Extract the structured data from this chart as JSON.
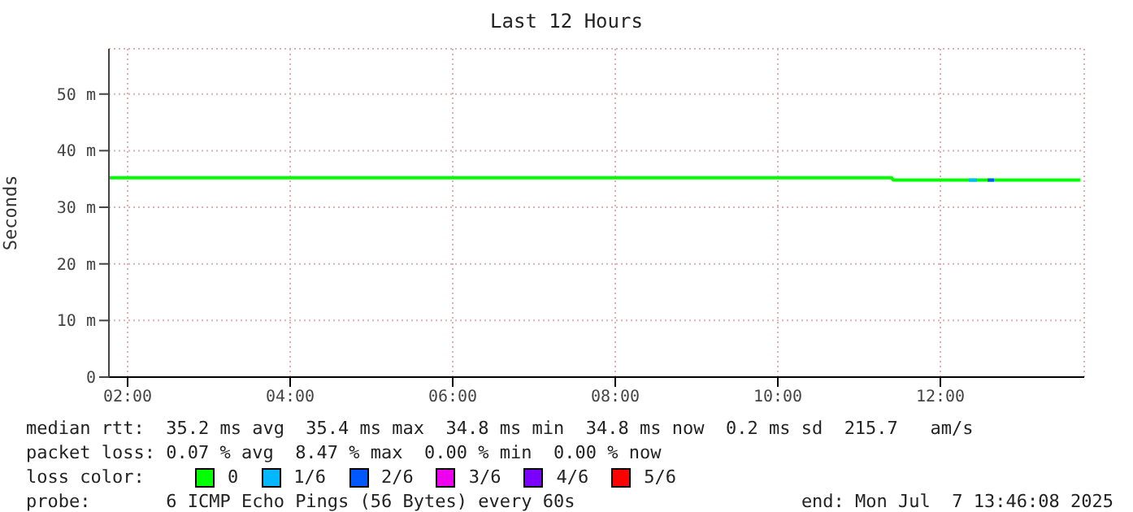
{
  "chart_data": {
    "type": "line",
    "title": "Last 12 Hours",
    "ylabel": "Seconds",
    "xlim": [
      1.77,
      13.77
    ],
    "xticks": [
      {
        "value": 2,
        "label": "02:00"
      },
      {
        "value": 4,
        "label": "04:00"
      },
      {
        "value": 6,
        "label": "06:00"
      },
      {
        "value": 8,
        "label": "08:00"
      },
      {
        "value": 10,
        "label": "10:00"
      },
      {
        "value": 12,
        "label": "12:00"
      }
    ],
    "ylim": [
      0,
      58
    ],
    "yticks": [
      0,
      {
        "value": 10,
        "label": "10 m"
      },
      {
        "value": 20,
        "label": "20 m"
      },
      {
        "value": 30,
        "label": "30 m"
      },
      {
        "value": 40,
        "label": "40 m"
      },
      {
        "value": 50,
        "label": "50 m"
      }
    ],
    "grid": true,
    "legend": "bottom",
    "legend_title": "loss color:",
    "marker": "none",
    "line_style": "solid",
    "series": [
      {
        "name": "0",
        "color": "#00ff00",
        "x": [
          1.78,
          11.4,
          11.42,
          13.72
        ],
        "values": [
          35.2,
          35.2,
          34.8,
          34.8
        ]
      },
      {
        "name": "1/6",
        "color": "#00b8ff",
        "x": [
          12.35,
          12.45
        ],
        "values": [
          34.8,
          34.8
        ]
      },
      {
        "name": "2/6",
        "color": "#0059ff",
        "x": [
          12.58,
          12.66
        ],
        "values": [
          34.8,
          34.8
        ]
      },
      {
        "name": "3/6",
        "color": "#ee00ee"
      },
      {
        "name": "4/6",
        "color": "#7c00ff"
      },
      {
        "name": "5/6",
        "color": "#ff0000"
      }
    ],
    "annotations": [
      "median rtt:  35.2 ms avg  35.4 ms max  34.8 ms min  34.8 ms now  0.2 ms sd  215.7   am/s",
      "packet loss: 0.07 % avg  8.47 % max  0.00 % min  0.00 % now",
      "probe:       6 ICMP Echo Pings (56 Bytes) every 60s",
      "end: Mon Jul  7 13:46:08 2025"
    ]
  }
}
